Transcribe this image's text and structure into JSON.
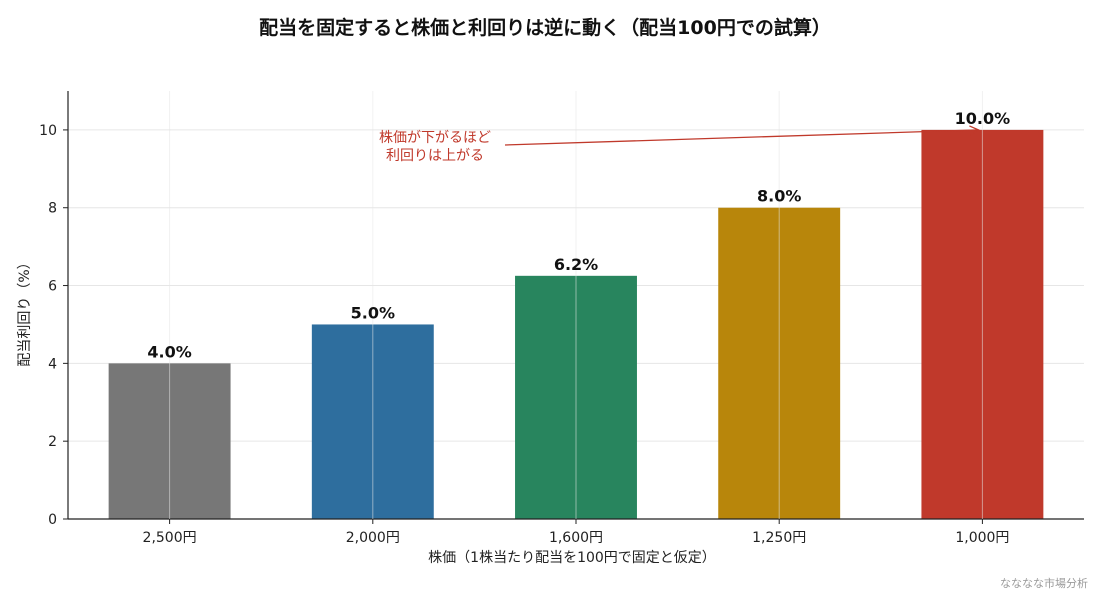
{
  "chart_data": {
    "type": "bar",
    "title": "配当を固定すると株価と利回りは逆に動く（配当100円での試算）",
    "xlabel": "株価（1株当たり配当を100円で固定と仮定）",
    "ylabel": "配当利回り（%）",
    "categories": [
      "2,500円",
      "2,000円",
      "1,600円",
      "1,250円",
      "1,000円"
    ],
    "values": [
      4.0,
      5.0,
      6.25,
      8.0,
      10.0
    ],
    "data_labels": [
      "4.0%",
      "5.0%",
      "6.2%",
      "8.0%",
      "10.0%"
    ],
    "colors": [
      "#777777",
      "#2e6e9e",
      "#28855e",
      "#b8860b",
      "#c0392b"
    ],
    "ylim": [
      0,
      11
    ],
    "yticks": [
      0,
      2,
      4,
      6,
      8,
      10
    ],
    "grid": true,
    "annotation": {
      "lines": [
        "株価が下がるほど",
        "利回りは上がる"
      ],
      "target_category_index": 4,
      "target_value": 10.0,
      "color": "#c0392b"
    }
  },
  "watermark": "なななな市場分析"
}
